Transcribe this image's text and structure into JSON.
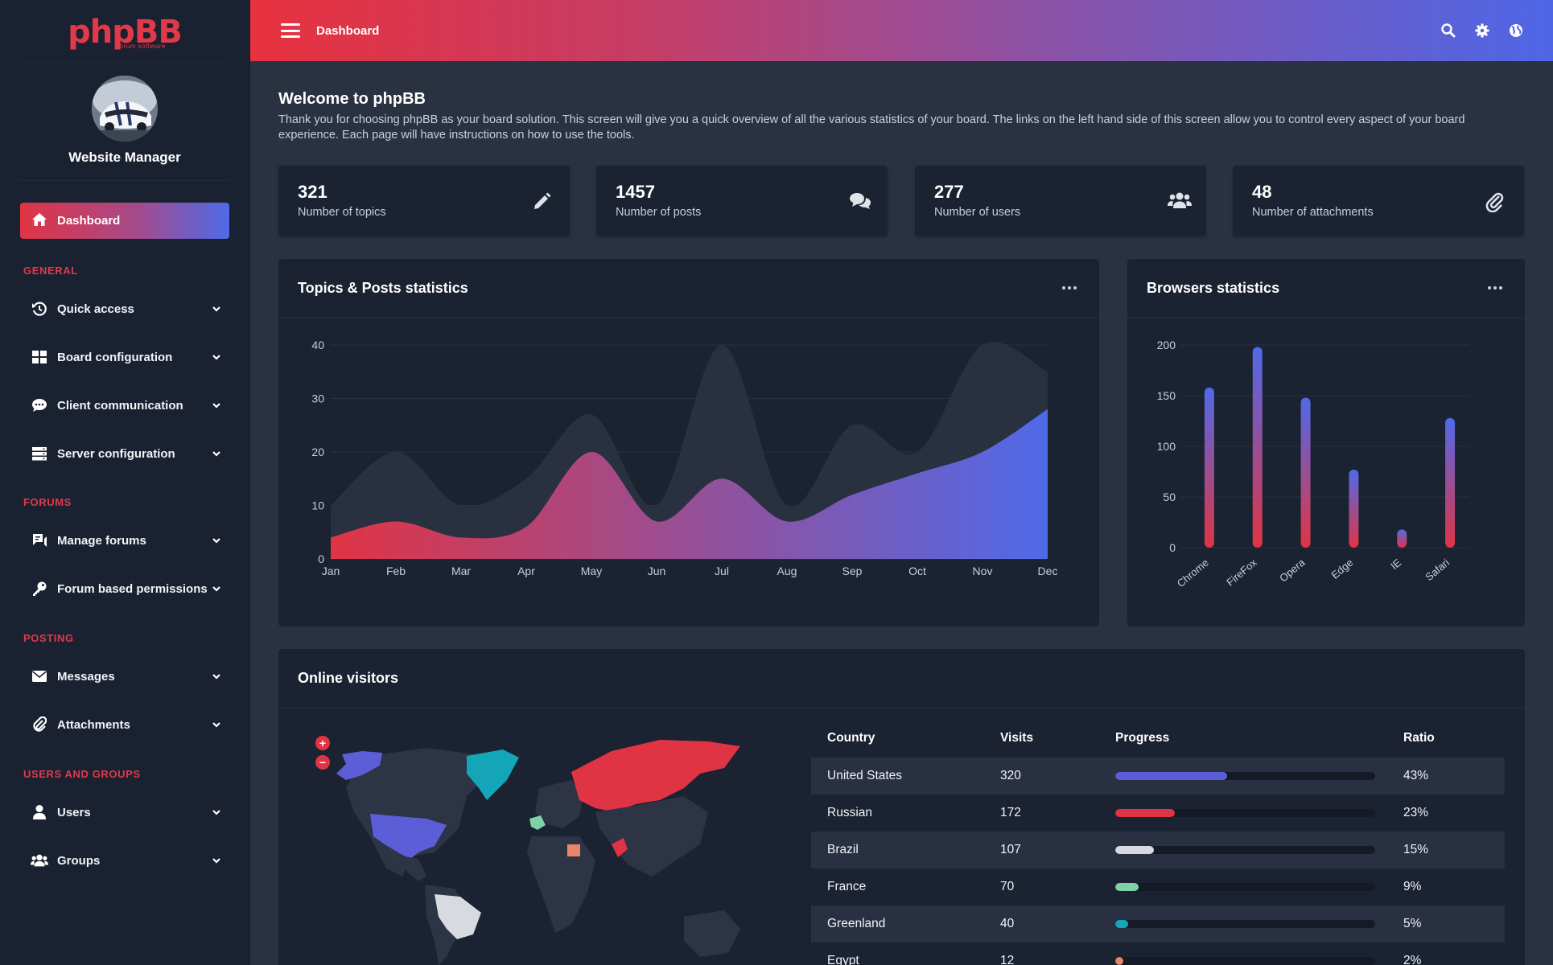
{
  "app": {
    "logo_text": "phpBB",
    "logo_sub": "forum software"
  },
  "profile": {
    "name": "Website Manager"
  },
  "topbar": {
    "title": "Dashboard"
  },
  "sidebar": {
    "active_item": "Dashboard",
    "sections": [
      {
        "title": "GENERAL",
        "items": [
          "Quick access",
          "Board configuration",
          "Client communication",
          "Server configuration"
        ]
      },
      {
        "title": "FORUMS",
        "items": [
          "Manage forums",
          "Forum based permissions"
        ]
      },
      {
        "title": "POSTING",
        "items": [
          "Messages",
          "Attachments"
        ]
      },
      {
        "title": "USERS AND GROUPS",
        "items": [
          "Users",
          "Groups"
        ]
      }
    ]
  },
  "welcome": {
    "title": "Welcome to phpBB",
    "text": "Thank you for choosing phpBB as your board solution. This screen will give you a quick overview of all the various statistics of your board. The links on the left hand side of this screen allow you to control every aspect of your board experience. Each page will have instructions on how to use the tools."
  },
  "stats": [
    {
      "value": "321",
      "label": "Number of topics",
      "icon": "pencil-icon"
    },
    {
      "value": "1457",
      "label": "Number of posts",
      "icon": "comments-icon"
    },
    {
      "value": "277",
      "label": "Number of users",
      "icon": "users-icon"
    },
    {
      "value": "48",
      "label": "Number of attachments",
      "icon": "paperclip-icon"
    }
  ],
  "panels": {
    "topics_posts": "Topics & Posts statistics",
    "browsers": "Browsers statistics",
    "online": "Online visitors"
  },
  "chart_data": [
    {
      "type": "area",
      "title": "Topics & Posts statistics",
      "categories": [
        "Jan",
        "Feb",
        "Mar",
        "Apr",
        "May",
        "Jun",
        "Jul",
        "Aug",
        "Sep",
        "Oct",
        "Nov",
        "Dec"
      ],
      "ylim": [
        0,
        40
      ],
      "yticks": [
        0,
        10,
        20,
        30,
        40
      ],
      "series": [
        {
          "values": [
            10,
            20,
            10,
            15,
            27,
            10,
            40,
            10,
            25,
            20,
            40,
            35
          ],
          "color": "#293140"
        },
        {
          "values": [
            4,
            7,
            4,
            6,
            20,
            7,
            15,
            7,
            12,
            16,
            20,
            28
          ],
          "gradient": [
            "#e03444",
            "#4f6ae8"
          ]
        }
      ],
      "grid": true
    },
    {
      "type": "bar",
      "title": "Browsers statistics",
      "categories": [
        "Chrome",
        "FireFox",
        "Opera",
        "Edge",
        "IE",
        "Safari"
      ],
      "values": [
        158,
        198,
        148,
        77,
        18,
        128
      ],
      "ylim": [
        0,
        200
      ],
      "yticks": [
        0,
        50,
        100,
        150,
        200
      ],
      "gradient": [
        "#e03444",
        "#4f6ae8"
      ],
      "grid": true
    }
  ],
  "visitors": {
    "headers": [
      "Country",
      "Visits",
      "Progress",
      "Ratio"
    ],
    "rows": [
      {
        "country": "United States",
        "visits": "320",
        "ratio": "43%",
        "progress": 0.43,
        "color": "#5b5ed6"
      },
      {
        "country": "Russian",
        "visits": "172",
        "ratio": "23%",
        "progress": 0.23,
        "color": "#e03444"
      },
      {
        "country": "Brazil",
        "visits": "107",
        "ratio": "15%",
        "progress": 0.15,
        "color": "#d7dbe0"
      },
      {
        "country": "France",
        "visits": "70",
        "ratio": "9%",
        "progress": 0.09,
        "color": "#7fd1a8"
      },
      {
        "country": "Greenland",
        "visits": "40",
        "ratio": "5%",
        "progress": 0.05,
        "color": "#14a6b8"
      },
      {
        "country": "Egypt",
        "visits": "12",
        "ratio": "2%",
        "progress": 0.02,
        "color": "#e8866a"
      }
    ]
  },
  "map": {
    "zoom_in": "+",
    "zoom_out": "−"
  }
}
